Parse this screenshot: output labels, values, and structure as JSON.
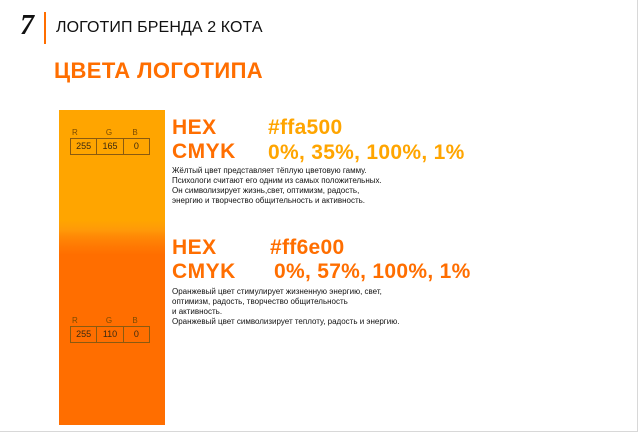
{
  "header": {
    "page_number": "7",
    "title": "ЛОГОТИП БРЕНДА 2 КОТА"
  },
  "section_title": "ЦВЕТА ЛОГОТИПА",
  "colors": {
    "accent": "#ff6e00",
    "yellow": "#ffa500"
  },
  "yellow": {
    "hex_label": "HEX",
    "hex_value": "#ffa500",
    "cmyk_label": "CMYK",
    "cmyk_value": "0%, 35%, 100%, 1%",
    "rgb_labels": [
      "R",
      "G",
      "B"
    ],
    "rgb_values": [
      "255",
      "165",
      "0"
    ],
    "description": [
      "Жёлтый цвет представляет тёплую цветовую гамму.",
      "Психологи считают его одним из самых положительных.",
      "Он символизирует жизнь,свет, оптимизм, радость,",
      "энергию и творчество общительность и активность."
    ]
  },
  "orange": {
    "hex_label": "HEX",
    "hex_value": "#ff6e00",
    "cmyk_label": "CMYK",
    "cmyk_value": "0%, 57%, 100%, 1%",
    "rgb_labels": [
      "R",
      "G",
      "B"
    ],
    "rgb_values": [
      "255",
      "110",
      "0"
    ],
    "description": [
      "Оранжевый цвет стимулирует жизненную энергию, свет,",
      "оптимизм, радость, творчество общительность",
      "и активность.",
      "Оранжевый цвет символизирует теплоту, радость и энергию."
    ]
  }
}
